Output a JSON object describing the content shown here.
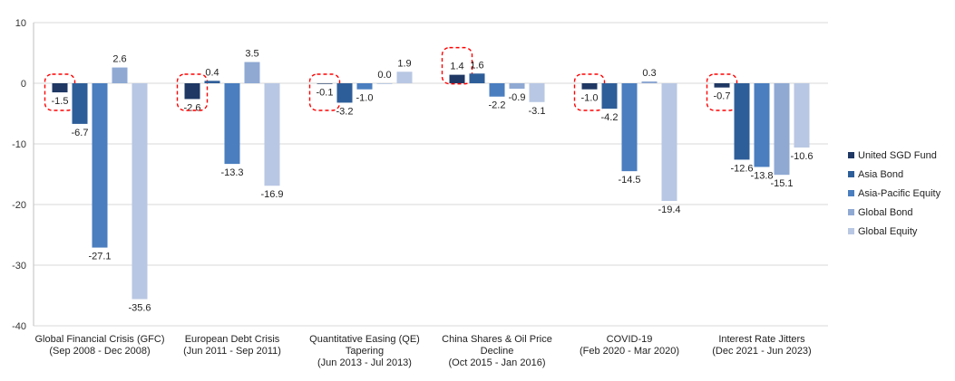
{
  "chart_data": {
    "type": "bar",
    "categories": [
      [
        "Global Financial Crisis (GFC)",
        "(Sep 2008 - Dec 2008)"
      ],
      [
        "European Debt Crisis",
        "(Jun 2011 - Sep 2011)"
      ],
      [
        "Quantitative Easing (QE)",
        "Tapering",
        "(Jun 2013 - Jul 2013)"
      ],
      [
        "China Shares & Oil Price",
        "Decline",
        "(Oct 2015 - Jan 2016)"
      ],
      [
        "COVID-19",
        "(Feb 2020 - Mar 2020)"
      ],
      [
        "Interest Rate Jitters",
        "(Dec 2021 - Jun 2023)"
      ]
    ],
    "series": [
      {
        "name": "United SGD Fund",
        "color": "#1f3864",
        "values": [
          -1.5,
          -2.6,
          -0.1,
          1.4,
          -1.0,
          -0.7
        ]
      },
      {
        "name": "Asia Bond",
        "color": "#2e5e99",
        "values": [
          -6.7,
          0.4,
          -3.2,
          1.6,
          -4.2,
          -12.6
        ]
      },
      {
        "name": "Asia-Pacific Equity",
        "color": "#4a7ebf",
        "values": [
          -27.1,
          -13.3,
          -1.0,
          -2.2,
          -14.5,
          -13.8
        ]
      },
      {
        "name": "Global Bond",
        "color": "#8fa9d3",
        "values": [
          2.6,
          3.5,
          0.0,
          -0.9,
          0.3,
          -15.1
        ]
      },
      {
        "name": "Global Equity",
        "color": "#b8c7e3",
        "values": [
          -35.6,
          -16.9,
          1.9,
          -3.1,
          -19.4,
          -10.6
        ]
      }
    ],
    "value_labels": [
      [
        "-1.5",
        "-6.7",
        "-27.1",
        "2.6",
        "-35.6"
      ],
      [
        "-2.6",
        "0.4",
        "-13.3",
        "3.5",
        "-16.9"
      ],
      [
        "-0.1",
        "-3.2",
        "-1.0",
        "0.0",
        "1.9"
      ],
      [
        "1.4",
        "1.6",
        "-2.2",
        "-0.9",
        "-3.1"
      ],
      [
        "-1.0",
        "-4.2",
        "-14.5",
        "0.3",
        "-19.4"
      ],
      [
        "-0.7",
        "-12.6",
        "-13.8",
        "-15.1",
        "-10.6"
      ]
    ],
    "y_ticks": [
      "10",
      "0",
      "-10",
      "-20",
      "-30",
      "-40"
    ],
    "ylim": [
      -40,
      10
    ],
    "title": "",
    "xlabel": "",
    "ylabel": "",
    "grid": true,
    "legend_position": "right",
    "highlight": "dashed red outline around each United SGD Fund value",
    "highlight_color": "#ff0000"
  }
}
